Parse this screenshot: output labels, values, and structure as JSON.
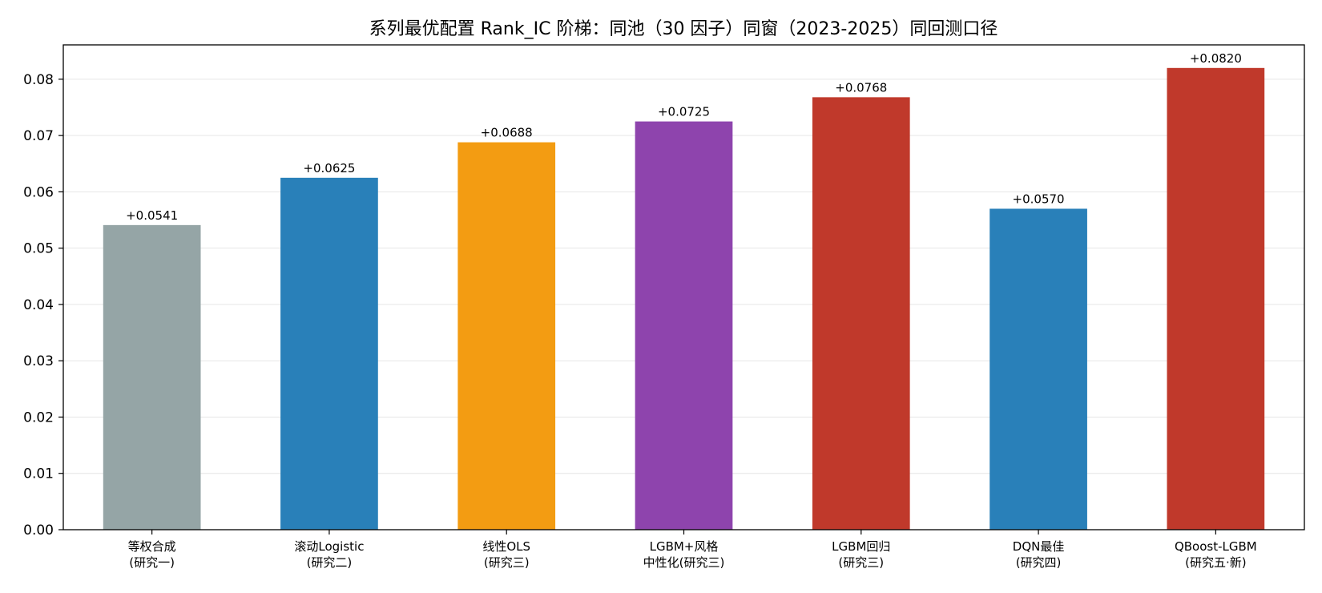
{
  "chart_data": {
    "type": "bar",
    "title": "系列最优配置 Rank_IC 阶梯：同池（30 因子）同窗（2023-2025）同回测口径",
    "xlabel": "",
    "ylabel": "",
    "ylim": [
      0,
      0.0861
    ],
    "yticks": [
      "0.00",
      "0.01",
      "0.02",
      "0.03",
      "0.04",
      "0.05",
      "0.06",
      "0.07",
      "0.08"
    ],
    "grid": "y",
    "categories": [
      [
        "等权合成",
        "(研究一)"
      ],
      [
        "滚动Logistic",
        "(研究二)"
      ],
      [
        "线性OLS",
        "(研究三)"
      ],
      [
        "LGBM+风格",
        "中性化(研究三)"
      ],
      [
        "LGBM回归",
        "(研究三)"
      ],
      [
        "DQN最佳",
        "(研究四)"
      ],
      [
        "QBoost-LGBM",
        "(研究五·新)"
      ]
    ],
    "values": [
      0.0541,
      0.0625,
      0.0688,
      0.0725,
      0.0768,
      0.057,
      0.082
    ],
    "data_labels": [
      "+0.0541",
      "+0.0625",
      "+0.0688",
      "+0.0725",
      "+0.0768",
      "+0.0570",
      "+0.0820"
    ],
    "colors": [
      "#95a5a6",
      "#2980b9",
      "#f39c12",
      "#8e44ad",
      "#c0392b",
      "#2980b9",
      "#c0392b"
    ]
  }
}
